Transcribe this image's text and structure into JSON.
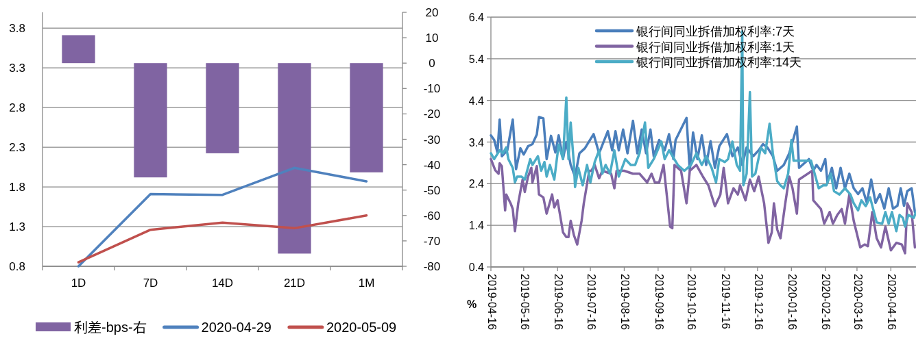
{
  "chart_data": [
    {
      "type": "bar",
      "categories": [
        "1D",
        "7D",
        "14D",
        "21D",
        "1M"
      ],
      "series": [
        {
          "name": "利差-bps-右",
          "type": "bar",
          "axis": "y2",
          "color": "#8064a2",
          "values": [
            11,
            -45,
            -35.5,
            -75,
            -43
          ]
        },
        {
          "name": "2020-04-29",
          "type": "line",
          "color": "#4f81bd",
          "values": [
            0.8,
            1.71,
            1.7,
            2.04,
            1.87
          ]
        },
        {
          "name": "2020-05-09",
          "type": "line",
          "color": "#c0504d",
          "values": [
            0.85,
            1.26,
            1.35,
            1.28,
            1.44
          ]
        }
      ],
      "ylim": [
        0.8,
        4.0
      ],
      "yticks": [
        0.8,
        1.3,
        1.8,
        2.3,
        2.8,
        3.3,
        3.8
      ],
      "y2lim": [
        -80,
        20
      ],
      "y2ticks": [
        -80,
        -70,
        -60,
        -50,
        -40,
        -30,
        -20,
        -10,
        0,
        10,
        20
      ],
      "grid": "y",
      "legend": "bottom",
      "marker": "none"
    },
    {
      "type": "line",
      "ylabel": "%",
      "xlim": [
        "2019-04-16",
        "2020-05-09"
      ],
      "xticks": [
        "2019-04-16",
        "2019-05-16",
        "2019-06-16",
        "2019-07-16",
        "2019-08-16",
        "2019-09-16",
        "2019-10-16",
        "2019-11-16",
        "2019-12-16",
        "2020-01-16",
        "2020-02-16",
        "2020-03-16",
        "2020-04-16"
      ],
      "ylim": [
        0.4,
        6.4
      ],
      "yticks": [
        0.4,
        1.4,
        2.4,
        3.4,
        4.4,
        5.4,
        6.4
      ],
      "grid": "y",
      "legend": "top",
      "marker": "none",
      "series": [
        {
          "name": "银行间同业拆借加权利率:7天",
          "color": "#4a7ebb",
          "x": [
            "2019-04-16",
            "2019-04-19",
            "2019-04-22",
            "2019-04-24",
            "2019-04-26",
            "2019-05-01",
            "2019-05-06",
            "2019-05-09",
            "2019-05-13",
            "2019-05-16",
            "2019-05-20",
            "2019-05-24",
            "2019-05-28",
            "2019-05-30",
            "2019-06-03",
            "2019-06-06",
            "2019-06-10",
            "2019-06-14",
            "2019-06-17",
            "2019-06-21",
            "2019-06-24",
            "2019-06-28",
            "2019-07-02",
            "2019-07-06",
            "2019-07-11",
            "2019-07-19",
            "2019-07-24",
            "2019-08-01",
            "2019-08-05",
            "2019-08-08",
            "2019-08-11",
            "2019-08-15",
            "2019-08-19",
            "2019-08-24",
            "2019-08-28",
            "2019-09-01",
            "2019-09-05",
            "2019-09-09",
            "2019-09-12",
            "2019-09-17",
            "2019-09-22",
            "2019-09-26",
            "2019-09-30",
            "2019-10-02",
            "2019-10-12",
            "2019-10-15",
            "2019-10-18",
            "2019-10-22",
            "2019-10-26",
            "2019-10-30",
            "2019-11-03",
            "2019-11-07",
            "2019-11-11",
            "2019-11-18",
            "2019-11-23",
            "2019-11-28",
            "2019-12-02",
            "2019-12-06",
            "2019-12-12",
            "2019-12-17",
            "2019-12-21",
            "2019-12-25",
            "2019-12-30",
            "2020-01-03",
            "2020-01-09",
            "2020-01-14",
            "2020-01-21",
            "2020-01-23",
            "2020-02-01",
            "2020-02-05",
            "2020-02-08",
            "2020-02-12",
            "2020-02-16",
            "2020-02-18",
            "2020-02-22",
            "2020-02-26",
            "2020-03-01",
            "2020-03-05",
            "2020-03-09",
            "2020-03-13",
            "2020-03-17",
            "2020-03-21",
            "2020-03-25",
            "2020-03-29",
            "2020-04-02",
            "2020-04-06",
            "2020-04-10",
            "2020-04-14",
            "2020-04-18",
            "2020-04-22",
            "2020-04-25",
            "2020-04-28",
            "2020-05-01",
            "2020-05-05",
            "2020-05-08"
          ],
          "values": [
            3.56,
            3.45,
            3.15,
            3.94,
            3.06,
            3.2,
            3.94,
            2.75,
            3.25,
            3.1,
            3.3,
            3.35,
            3.58,
            4.0,
            3.97,
            2.99,
            3.55,
            3.15,
            3.56,
            3.0,
            3.4,
            2.85,
            2.57,
            3.13,
            3.25,
            3.59,
            3.13,
            3.66,
            3.2,
            3.66,
            3.2,
            3.7,
            3.13,
            3.91,
            3.13,
            3.7,
            3.13,
            3.7,
            3.06,
            3.45,
            3.2,
            3.59,
            2.99,
            3.45,
            3.98,
            2.71,
            3.63,
            2.99,
            3.56,
            2.85,
            3.42,
            2.78,
            3.3,
            3.59,
            3.06,
            3.27,
            2.85,
            3.27,
            3.06,
            3.2,
            3.35,
            3.27,
            3.06,
            2.71,
            2.85,
            3.13,
            3.77,
            2.78,
            2.99,
            2.71,
            2.85,
            2.71,
            2.99,
            2.43,
            2.78,
            2.29,
            2.78,
            2.29,
            2.64,
            2.29,
            2.15,
            2.29,
            1.94,
            2.5,
            1.94,
            2.15,
            1.8,
            2.29,
            1.8,
            1.87,
            2.29,
            1.87,
            2.22,
            2.29,
            1.72
          ]
        },
        {
          "name": "银行间同业拆借加权利率:1天",
          "color": "#8064a2",
          "x": [
            "2019-04-16",
            "2019-04-20",
            "2019-04-23",
            "2019-04-24",
            "2019-04-26",
            "2019-04-29",
            "2019-04-30",
            "2019-05-04",
            "2019-05-06",
            "2019-05-08",
            "2019-05-11",
            "2019-05-15",
            "2019-05-17",
            "2019-05-20",
            "2019-05-23",
            "2019-05-24",
            "2019-05-28",
            "2019-05-30",
            "2019-06-03",
            "2019-06-06",
            "2019-06-11",
            "2019-06-13",
            "2019-06-16",
            "2019-06-21",
            "2019-06-24",
            "2019-06-26",
            "2019-06-28",
            "2019-07-01",
            "2019-07-04",
            "2019-07-08",
            "2019-07-10",
            "2019-07-15",
            "2019-07-17",
            "2019-07-20",
            "2019-07-24",
            "2019-07-27",
            "2019-08-04",
            "2019-08-07",
            "2019-08-09",
            "2019-08-16",
            "2019-08-24",
            "2019-08-30",
            "2019-09-06",
            "2019-09-10",
            "2019-09-13",
            "2019-09-17",
            "2019-09-21",
            "2019-09-27",
            "2019-09-29",
            "2019-10-01",
            "2019-10-07",
            "2019-10-12",
            "2019-10-15",
            "2019-10-21",
            "2019-10-27",
            "2019-11-01",
            "2019-11-07",
            "2019-11-12",
            "2019-11-15",
            "2019-11-19",
            "2019-11-24",
            "2019-11-28",
            "2019-11-30",
            "2019-12-05",
            "2019-12-09",
            "2019-12-13",
            "2019-12-17",
            "2019-12-22",
            "2019-12-26",
            "2019-12-29",
            "2019-12-31",
            "2020-01-03",
            "2020-01-06",
            "2020-01-10",
            "2020-01-14",
            "2020-01-17",
            "2020-01-21",
            "2020-01-23",
            "2020-02-04",
            "2020-02-05",
            "2020-02-12",
            "2020-02-15",
            "2020-02-20",
            "2020-02-23",
            "2020-02-27",
            "2020-03-02",
            "2020-03-05",
            "2020-03-09",
            "2020-03-13",
            "2020-03-19",
            "2020-03-23",
            "2020-03-26",
            "2020-03-30",
            "2020-04-03",
            "2020-04-07",
            "2020-04-11",
            "2020-04-16",
            "2020-04-21",
            "2020-04-26",
            "2020-04-29",
            "2020-05-01",
            "2020-05-05",
            "2020-05-08"
          ],
          "values": [
            2.99,
            2.72,
            2.64,
            2.89,
            2.82,
            1.76,
            2.14,
            1.93,
            1.79,
            1.26,
            1.93,
            2.5,
            2.2,
            2.57,
            2.78,
            2.43,
            2.82,
            2.14,
            2.07,
            1.68,
            2.14,
            1.83,
            2.0,
            1.23,
            1.12,
            1.12,
            1.51,
            1.16,
            0.94,
            1.51,
            1.93,
            2.71,
            2.71,
            2.85,
            2.53,
            2.71,
            2.64,
            2.29,
            2.71,
            2.71,
            2.64,
            2.64,
            2.43,
            2.64,
            2.43,
            2.43,
            2.85,
            1.37,
            1.33,
            2.85,
            2.71,
            1.93,
            2.71,
            2.85,
            2.57,
            2.36,
            1.86,
            2.14,
            2.78,
            1.93,
            2.29,
            2.14,
            2.36,
            2.0,
            2.5,
            2.22,
            2.57,
            1.93,
            0.98,
            1.23,
            1.93,
            1.3,
            1.09,
            1.86,
            2.57,
            2.29,
            1.68,
            2.5,
            2.71,
            2.0,
            1.79,
            1.44,
            1.72,
            1.44,
            1.65,
            1.79,
            1.44,
            2.14,
            1.51,
            0.87,
            0.94,
            0.9,
            1.72,
            1.09,
            0.87,
            1.37,
            0.8,
            0.98,
            0.94,
            0.73,
            1.93,
            1.72,
            0.87
          ]
        },
        {
          "name": "银行间同业拆借加权利率:14天",
          "color": "#4bacc6",
          "x": [
            "2019-04-16",
            "2019-04-19",
            "2019-04-24",
            "2019-04-27",
            "2019-04-30",
            "2019-05-02",
            "2019-05-06",
            "2019-05-08",
            "2019-05-10",
            "2019-05-14",
            "2019-05-17",
            "2019-05-22",
            "2019-05-24",
            "2019-05-29",
            "2019-06-01",
            "2019-06-04",
            "2019-06-06",
            "2019-06-09",
            "2019-06-13",
            "2019-06-17",
            "2019-06-21",
            "2019-06-24",
            "2019-06-26",
            "2019-06-28",
            "2019-07-01",
            "2019-07-02",
            "2019-07-05",
            "2019-07-09",
            "2019-07-13",
            "2019-07-16",
            "2019-07-20",
            "2019-07-24",
            "2019-07-27",
            "2019-07-30",
            "2019-08-03",
            "2019-08-07",
            "2019-08-11",
            "2019-08-17",
            "2019-08-22",
            "2019-08-26",
            "2019-08-30",
            "2019-09-04",
            "2019-09-07",
            "2019-09-12",
            "2019-09-19",
            "2019-09-22",
            "2019-09-26",
            "2019-10-04",
            "2019-10-10",
            "2019-10-16",
            "2019-10-21",
            "2019-10-26",
            "2019-10-30",
            "2019-11-04",
            "2019-11-08",
            "2019-11-11",
            "2019-11-16",
            "2019-11-19",
            "2019-11-23",
            "2019-11-27",
            "2019-11-30",
            "2019-12-02",
            "2019-12-03",
            "2019-12-06",
            "2019-12-09",
            "2019-12-11",
            "2019-12-14",
            "2019-12-19",
            "2019-12-23",
            "2019-12-27",
            "2019-12-30",
            "2020-01-03",
            "2020-01-06",
            "2020-01-09",
            "2020-01-13",
            "2020-01-16",
            "2020-01-18",
            "2020-01-22",
            "2020-02-03",
            "2020-02-07",
            "2020-02-10",
            "2020-02-14",
            "2020-02-17",
            "2020-02-21",
            "2020-02-24",
            "2020-02-29",
            "2020-03-05",
            "2020-03-10",
            "2020-03-13",
            "2020-03-17",
            "2020-03-20",
            "2020-03-24",
            "2020-03-28",
            "2020-04-03",
            "2020-04-08",
            "2020-04-11",
            "2020-04-14",
            "2020-04-17",
            "2020-04-21",
            "2020-04-24",
            "2020-04-27",
            "2020-04-29",
            "2020-05-02",
            "2020-05-07",
            "2020-05-09"
          ],
          "values": [
            3.13,
            2.99,
            3.2,
            3.13,
            3.27,
            2.99,
            2.78,
            2.43,
            2.57,
            2.57,
            2.5,
            2.99,
            2.85,
            3.06,
            2.71,
            2.92,
            2.57,
            2.85,
            2.5,
            3.34,
            2.99,
            4.47,
            2.99,
            3.87,
            2.85,
            2.32,
            2.78,
            2.36,
            2.85,
            2.43,
            2.92,
            3.2,
            2.64,
            2.85,
            2.64,
            3.2,
            2.57,
            2.99,
            2.85,
            2.85,
            3.13,
            3.87,
            2.78,
            2.99,
            3.41,
            2.99,
            3.2,
            2.85,
            2.71,
            2.85,
            3.13,
            2.85,
            3.06,
            2.78,
            2.43,
            2.99,
            2.92,
            2.99,
            3.41,
            2.85,
            2.71,
            6.06,
            2.36,
            2.64,
            4.6,
            2.57,
            2.64,
            3.27,
            3.13,
            3.84,
            3.13,
            2.46,
            2.36,
            2.29,
            2.64,
            3.45,
            2.95,
            2.95,
            2.95,
            2.57,
            2.29,
            2.36,
            2.36,
            2.64,
            2.22,
            2.14,
            2.29,
            2.14,
            1.93,
            1.76,
            2.0,
            1.86,
            2.07,
            1.47,
            1.44,
            1.72,
            1.44,
            1.72,
            1.26,
            1.65,
            1.58,
            1.37,
            1.65,
            1.58,
            1.72
          ]
        }
      ]
    }
  ]
}
